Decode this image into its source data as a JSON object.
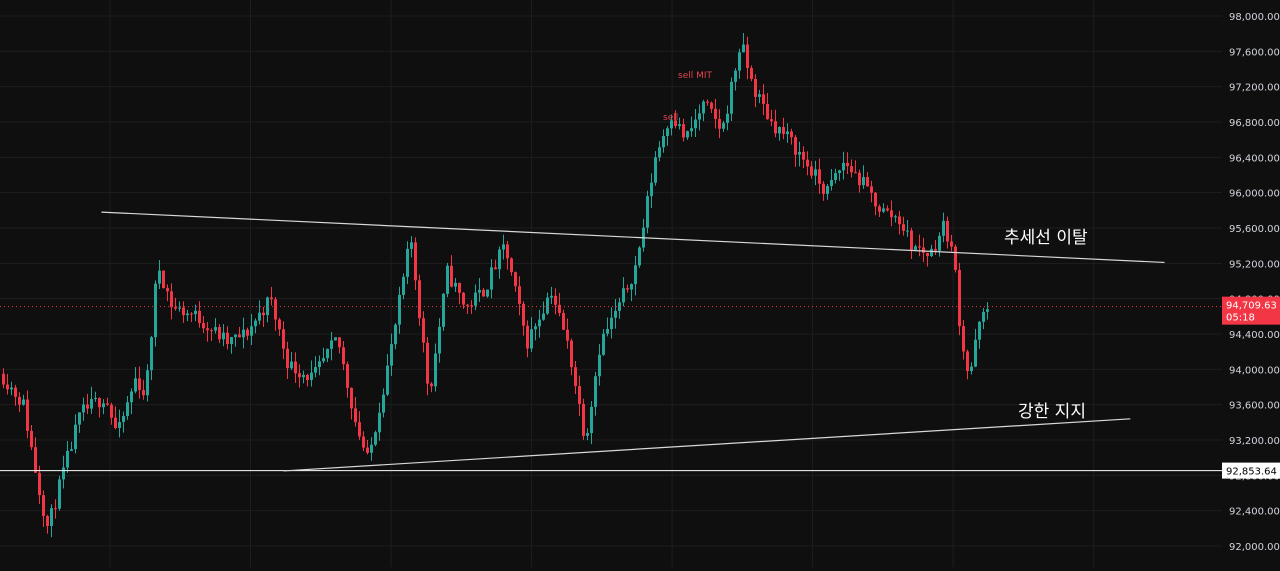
{
  "chart_data": {
    "type": "candlestick",
    "symbol": "",
    "ylim": [
      91900,
      98080
    ],
    "grid": true,
    "y_ticks": [
      "98,000.00",
      "97,600.00",
      "97,200.00",
      "96,800.00",
      "96,400.00",
      "96,000.00",
      "95,600.00",
      "95,200.00",
      "94,800.00",
      "94,400.00",
      "94,000.00",
      "93,600.00",
      "93,200.00",
      "92,800.00",
      "92,400.00",
      "92,000.00"
    ],
    "y_tick_values": [
      98000,
      97600,
      97200,
      96800,
      96400,
      96000,
      95600,
      95200,
      94800,
      94400,
      94000,
      93600,
      93200,
      92800,
      92400,
      92000
    ],
    "last_price": {
      "value": 94709.63,
      "label": "94,709.63",
      "countdown": "05:18",
      "color": "#f23645"
    },
    "support_level": {
      "value": 92853.64,
      "label": "92,853.64"
    },
    "trendlines": [
      {
        "name": "upper-trendline",
        "from": {
          "bar": 0.083,
          "price": 95780
        },
        "to": {
          "bar": 0.953,
          "price": 95210
        }
      },
      {
        "name": "lower-support-trendline",
        "from": {
          "bar": 0.232,
          "price": 92850
        },
        "to": {
          "bar": 0.925,
          "price": 93440
        }
      }
    ],
    "annotations": [
      {
        "name": "trendline-break-annotation",
        "text": "추세선 이탈"
      },
      {
        "name": "strong-support-annotation",
        "text": "강한 지지"
      }
    ],
    "orders": [
      {
        "name": "sell-mit-order",
        "text": "sell MIT"
      },
      {
        "name": "sell-order",
        "text": "sell"
      }
    ],
    "colors": {
      "up": "#26a69a",
      "down": "#f23645",
      "background": "#0f0f0f",
      "grid": "#1e1e1e",
      "trendline": "#d8d8d8"
    },
    "price_path": [
      {
        "t": 0.0,
        "p": 93950
      },
      {
        "t": 0.018,
        "p": 93600
      },
      {
        "t": 0.03,
        "p": 92700
      },
      {
        "t": 0.038,
        "p": 92200
      },
      {
        "t": 0.05,
        "p": 92800
      },
      {
        "t": 0.065,
        "p": 93500
      },
      {
        "t": 0.085,
        "p": 93700
      },
      {
        "t": 0.095,
        "p": 93250
      },
      {
        "t": 0.11,
        "p": 93900
      },
      {
        "t": 0.118,
        "p": 93700
      },
      {
        "t": 0.128,
        "p": 95200
      },
      {
        "t": 0.14,
        "p": 94700
      },
      {
        "t": 0.16,
        "p": 94600
      },
      {
        "t": 0.185,
        "p": 94300
      },
      {
        "t": 0.2,
        "p": 94400
      },
      {
        "t": 0.22,
        "p": 94800
      },
      {
        "t": 0.235,
        "p": 94050
      },
      {
        "t": 0.255,
        "p": 93900
      },
      {
        "t": 0.275,
        "p": 94350
      },
      {
        "t": 0.29,
        "p": 93400
      },
      {
        "t": 0.3,
        "p": 92950
      },
      {
        "t": 0.32,
        "p": 94300
      },
      {
        "t": 0.335,
        "p": 95500
      },
      {
        "t": 0.35,
        "p": 93700
      },
      {
        "t": 0.365,
        "p": 95100
      },
      {
        "t": 0.38,
        "p": 94700
      },
      {
        "t": 0.395,
        "p": 94900
      },
      {
        "t": 0.412,
        "p": 95400
      },
      {
        "t": 0.43,
        "p": 94300
      },
      {
        "t": 0.45,
        "p": 94900
      },
      {
        "t": 0.465,
        "p": 94200
      },
      {
        "t": 0.478,
        "p": 93200
      },
      {
        "t": 0.49,
        "p": 94300
      },
      {
        "t": 0.505,
        "p": 94700
      },
      {
        "t": 0.52,
        "p": 95200
      },
      {
        "t": 0.535,
        "p": 96400
      },
      {
        "t": 0.548,
        "p": 96900
      },
      {
        "t": 0.56,
        "p": 96600
      },
      {
        "t": 0.575,
        "p": 97000
      },
      {
        "t": 0.59,
        "p": 96700
      },
      {
        "t": 0.605,
        "p": 97700
      },
      {
        "t": 0.615,
        "p": 97200
      },
      {
        "t": 0.63,
        "p": 96800
      },
      {
        "t": 0.645,
        "p": 96600
      },
      {
        "t": 0.66,
        "p": 96300
      },
      {
        "t": 0.675,
        "p": 96000
      },
      {
        "t": 0.69,
        "p": 96350
      },
      {
        "t": 0.705,
        "p": 96100
      },
      {
        "t": 0.72,
        "p": 95800
      },
      {
        "t": 0.735,
        "p": 95700
      },
      {
        "t": 0.745,
        "p": 95400
      },
      {
        "t": 0.76,
        "p": 95300
      },
      {
        "t": 0.772,
        "p": 95650
      },
      {
        "t": 0.78,
        "p": 95200
      },
      {
        "t": 0.785,
        "p": 94400
      },
      {
        "t": 0.792,
        "p": 93900
      },
      {
        "t": 0.8,
        "p": 94500
      },
      {
        "t": 0.808,
        "p": 94700
      }
    ]
  }
}
